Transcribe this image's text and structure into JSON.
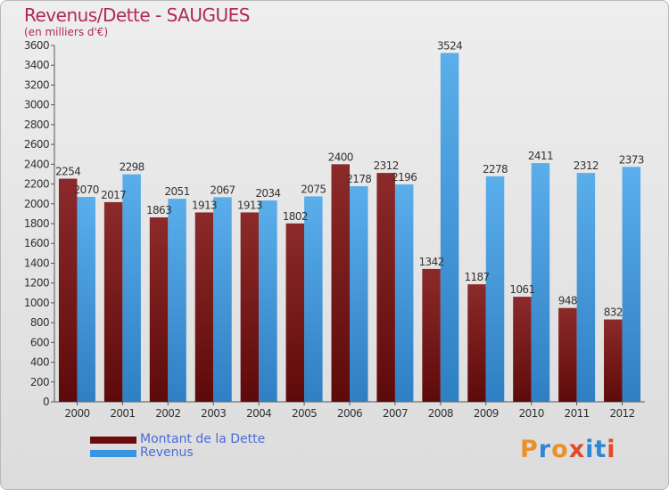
{
  "title": "Revenus/Dette - SAUGUES",
  "subtitle": "(en milliers d'€)",
  "colors": {
    "dette": "#7a1a1a",
    "revenus": "#4a9fe0",
    "title": "#b0285c",
    "legend_text": "#4a6bd8"
  },
  "legend": [
    {
      "label": "Montant de la Dette",
      "color": "#6b0d0d"
    },
    {
      "label": "Revenus",
      "color": "#3a95e0"
    }
  ],
  "logo": {
    "text": "Proxiti",
    "letters": [
      "P",
      "r",
      "o",
      "x",
      "i",
      "t",
      "i"
    ]
  },
  "chart_data": {
    "type": "bar",
    "categories": [
      "2000",
      "2001",
      "2002",
      "2003",
      "2004",
      "2005",
      "2006",
      "2007",
      "2008",
      "2009",
      "2010",
      "2011",
      "2012"
    ],
    "series": [
      {
        "name": "Montant de la Dette",
        "values": [
          2254,
          2017,
          1863,
          1913,
          1913,
          1802,
          2400,
          2312,
          1342,
          1187,
          1061,
          948,
          832
        ],
        "labels": [
          "2254",
          "2017",
          "1863",
          "1913",
          "1913",
          "1802",
          "2400",
          "2312",
          "1342",
          "1187",
          "1061",
          "948",
          "832"
        ]
      },
      {
        "name": "Revenus",
        "values": [
          2070,
          2298,
          2051,
          2067,
          2034,
          2075,
          2178,
          2196,
          3524,
          2278,
          2411,
          2312,
          2373
        ],
        "labels": [
          "2070",
          "2298",
          "2051",
          "2067",
          "2034",
          "2075",
          "2178",
          "2196",
          "3524",
          "2278",
          "2411",
          "2312",
          "2373"
        ]
      }
    ],
    "ylim": [
      0,
      3600
    ],
    "yticks": [
      0,
      200,
      400,
      600,
      800,
      1000,
      1200,
      1400,
      1600,
      1800,
      2000,
      2200,
      2400,
      2600,
      2800,
      3000,
      3200,
      3400,
      3600
    ],
    "grid": false,
    "legend_position": "bottom-left",
    "xlabel": "",
    "ylabel": ""
  }
}
